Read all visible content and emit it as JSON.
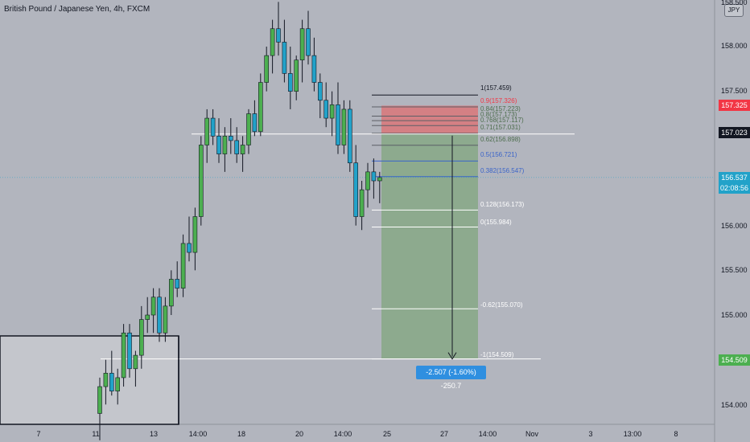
{
  "header": {
    "symbol_title": "British Pound / Japanese Yen, 4h, FXCM",
    "currency_button": "JPY"
  },
  "price_axis": {
    "ticks": [
      "158.500",
      "158.000",
      "157.500",
      "156.000",
      "155.500",
      "155.000",
      "154.000"
    ],
    "labels": {
      "stop_price": "157.325",
      "entry_price": "157.023",
      "current_price": "156.537",
      "countdown": "02:08:56",
      "target_price": "154.509"
    },
    "colors": {
      "stop": "#f23645",
      "entry": "#131722",
      "current": "#22a2c9",
      "target": "#4caf50"
    }
  },
  "time_axis": {
    "labels": [
      "7",
      "11",
      "13",
      "14:00",
      "18",
      "20",
      "14:00",
      "25",
      "27",
      "14:00",
      "Nov",
      "3",
      "13:00",
      "8"
    ]
  },
  "fib_levels": [
    {
      "text": "1(157.459)",
      "color": "#131722"
    },
    {
      "text": "0.9(157.326)",
      "color": "#f23645"
    },
    {
      "text": "0.84(157.223)",
      "color": "#4e6e4e"
    },
    {
      "text": "0.8(157.173)",
      "color": "#4e6e4e"
    },
    {
      "text": "0.768(157.117)",
      "color": "#4e6e4e"
    },
    {
      "text": "0.71(157.031)",
      "color": "#4e6e4e"
    },
    {
      "text": "0.62(156.898)",
      "color": "#4e6e4e"
    },
    {
      "text": "0.5(156.721)",
      "color": "#3a64c9"
    },
    {
      "text": "0.382(156.547)",
      "color": "#3a64c9"
    },
    {
      "text": "0.128(156.173)",
      "color": "#ffffff"
    },
    {
      "text": "0(155.984)",
      "color": "#ffffff"
    },
    {
      "text": "-0.62(155.070)",
      "color": "#ffffff"
    },
    {
      "text": "-1(154.509)",
      "color": "#ffffff"
    }
  ],
  "position_tool": {
    "measure_label": "-2.507 (-1.60%) -250.7",
    "colors": {
      "stop_zone": "#d9777a",
      "target_zone": "#86a886"
    }
  },
  "chart_data": {
    "type": "candlestick",
    "title": "British Pound / Japanese Yen, 4h, FXCM",
    "x_labels": [
      "7",
      "11",
      "13",
      "14:00",
      "18",
      "20",
      "14:00",
      "25",
      "27",
      "14:00",
      "Nov",
      "3",
      "13:00",
      "8"
    ],
    "y_range": [
      153.85,
      158.7
    ],
    "series": [
      {
        "name": "GBPJPY",
        "colors": {
          "up": "#4caf50",
          "down": "#22a2c9"
        }
      }
    ],
    "ohlc": [
      [
        153.9,
        154.3,
        153.6,
        154.2
      ],
      [
        154.2,
        154.5,
        154.0,
        154.35
      ],
      [
        154.35,
        154.6,
        154.1,
        154.15
      ],
      [
        154.15,
        154.4,
        154.0,
        154.3
      ],
      [
        154.3,
        154.9,
        154.2,
        154.8
      ],
      [
        154.8,
        154.9,
        154.3,
        154.4
      ],
      [
        154.4,
        154.6,
        154.2,
        154.55
      ],
      [
        154.55,
        155.1,
        154.4,
        154.95
      ],
      [
        154.95,
        155.2,
        154.8,
        155.0
      ],
      [
        155.0,
        155.3,
        154.8,
        155.2
      ],
      [
        155.2,
        155.3,
        154.7,
        154.8
      ],
      [
        154.8,
        155.2,
        154.7,
        155.1
      ],
      [
        155.1,
        155.5,
        155.0,
        155.4
      ],
      [
        155.4,
        155.6,
        155.2,
        155.3
      ],
      [
        155.3,
        155.9,
        155.2,
        155.8
      ],
      [
        155.8,
        156.1,
        155.6,
        155.7
      ],
      [
        155.7,
        156.2,
        155.5,
        156.1
      ],
      [
        156.1,
        157.0,
        156.0,
        156.9
      ],
      [
        156.9,
        157.3,
        156.7,
        157.2
      ],
      [
        157.2,
        157.3,
        156.9,
        157.0
      ],
      [
        157.0,
        157.2,
        156.7,
        156.8
      ],
      [
        156.8,
        157.1,
        156.6,
        157.0
      ],
      [
        157.0,
        157.2,
        156.8,
        156.95
      ],
      [
        156.95,
        157.1,
        156.7,
        156.8
      ],
      [
        156.8,
        157.0,
        156.6,
        156.9
      ],
      [
        156.9,
        157.3,
        156.8,
        157.25
      ],
      [
        157.25,
        157.4,
        157.0,
        157.05
      ],
      [
        157.05,
        157.7,
        157.0,
        157.6
      ],
      [
        157.6,
        158.0,
        157.5,
        157.9
      ],
      [
        157.9,
        158.3,
        157.7,
        158.2
      ],
      [
        158.2,
        158.5,
        157.9,
        158.05
      ],
      [
        158.05,
        158.3,
        157.6,
        157.7
      ],
      [
        157.7,
        158.0,
        157.3,
        157.5
      ],
      [
        157.5,
        157.9,
        157.4,
        157.85
      ],
      [
        157.85,
        158.3,
        157.6,
        158.2
      ],
      [
        158.2,
        158.4,
        157.8,
        157.9
      ],
      [
        157.9,
        158.1,
        157.5,
        157.6
      ],
      [
        157.6,
        157.7,
        157.2,
        157.4
      ],
      [
        157.4,
        157.6,
        157.1,
        157.2
      ],
      [
        157.2,
        157.5,
        157.0,
        157.35
      ],
      [
        157.35,
        157.6,
        156.8,
        156.9
      ],
      [
        156.9,
        157.4,
        156.8,
        157.3
      ],
      [
        157.3,
        157.4,
        156.6,
        156.7
      ],
      [
        156.7,
        156.9,
        156.0,
        156.1
      ],
      [
        156.1,
        156.5,
        155.95,
        156.4
      ],
      [
        156.4,
        156.7,
        156.2,
        156.6
      ],
      [
        156.6,
        156.75,
        156.3,
        156.5
      ],
      [
        156.5,
        156.6,
        156.25,
        156.537
      ]
    ]
  }
}
